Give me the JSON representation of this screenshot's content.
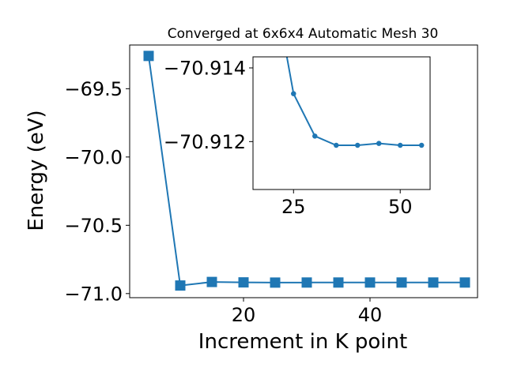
{
  "chart_data": [
    {
      "type": "line",
      "title": "Converged at 6x6x4 Automatic Mesh 30",
      "xlabel": "Increment in K point",
      "ylabel": "Energy (eV)",
      "xlim": [
        2,
        57
      ],
      "ylim": [
        -71.03,
        -69.18
      ],
      "x_ticks": [
        20,
        40
      ],
      "x_tick_labels": [
        "20",
        "40"
      ],
      "y_ticks": [
        -69.5,
        -70.0,
        -70.5,
        -71.0
      ],
      "y_tick_labels": [
        "−69.5",
        "−70.0",
        "−70.5",
        "−71.0"
      ],
      "grid": false,
      "series": [
        {
          "marker": "square",
          "color": "#1f77b4",
          "x": [
            5,
            10,
            15,
            20,
            25,
            30,
            35,
            40,
            45,
            50,
            55
          ],
          "y": [
            -69.26,
            -70.941,
            -70.915,
            -70.918,
            -70.9195,
            -70.919,
            -70.919,
            -70.919,
            -70.919,
            -70.919,
            -70.919
          ]
        }
      ]
    },
    {
      "type": "line",
      "role": "inset",
      "xlim": [
        15.5,
        57
      ],
      "ylim": [
        -70.9107,
        -70.9143
      ],
      "x_ticks": [
        25,
        50
      ],
      "x_tick_labels": [
        "25",
        "50"
      ],
      "y_ticks": [
        -70.914,
        -70.912
      ],
      "y_tick_labels": [
        "−70.914",
        "−70.912"
      ],
      "grid": false,
      "series": [
        {
          "marker": "circle",
          "color": "#1f77b4",
          "x": [
            20,
            25,
            30,
            35,
            40,
            45,
            50,
            55
          ],
          "y": [
            -70.9165,
            -70.9133,
            -70.91215,
            -70.9119,
            -70.9119,
            -70.91195,
            -70.9119,
            -70.9119
          ]
        }
      ]
    }
  ]
}
